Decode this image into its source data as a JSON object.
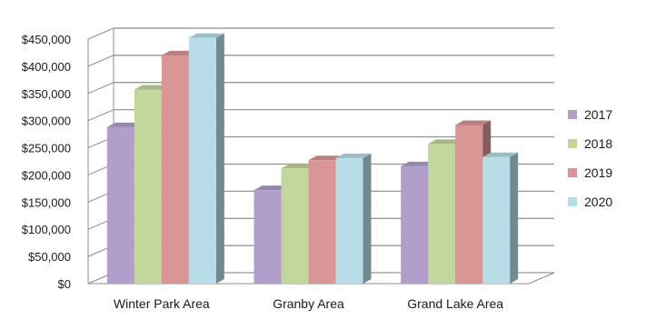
{
  "chart_data": {
    "type": "bar",
    "style": "3d-clustered-column",
    "title": "",
    "xlabel": "",
    "ylabel": "",
    "ylim": [
      0,
      450000
    ],
    "y_ticks": [
      0,
      50000,
      100000,
      150000,
      200000,
      250000,
      300000,
      350000,
      400000,
      450000
    ],
    "y_tick_labels": [
      "$0",
      "$50,000",
      "$100,000",
      "$150,000",
      "$200,000",
      "$250,000",
      "$300,000",
      "$350,000",
      "$400,000",
      "$450,000"
    ],
    "grid": true,
    "legend_position": "right",
    "categories": [
      "Winter Park Area",
      "Granby Area",
      "Grand Lake Area"
    ],
    "series": [
      {
        "name": "2017",
        "color": "#b09fca",
        "values": [
          288000,
          172000,
          216000
        ]
      },
      {
        "name": "2018",
        "color": "#c3d69b",
        "values": [
          357000,
          212000,
          257000
        ]
      },
      {
        "name": "2019",
        "color": "#d99694",
        "values": [
          420000,
          227000,
          292000
        ]
      },
      {
        "name": "2020",
        "color": "#b7dee8",
        "values": [
          452000,
          231000,
          233000
        ]
      }
    ]
  }
}
